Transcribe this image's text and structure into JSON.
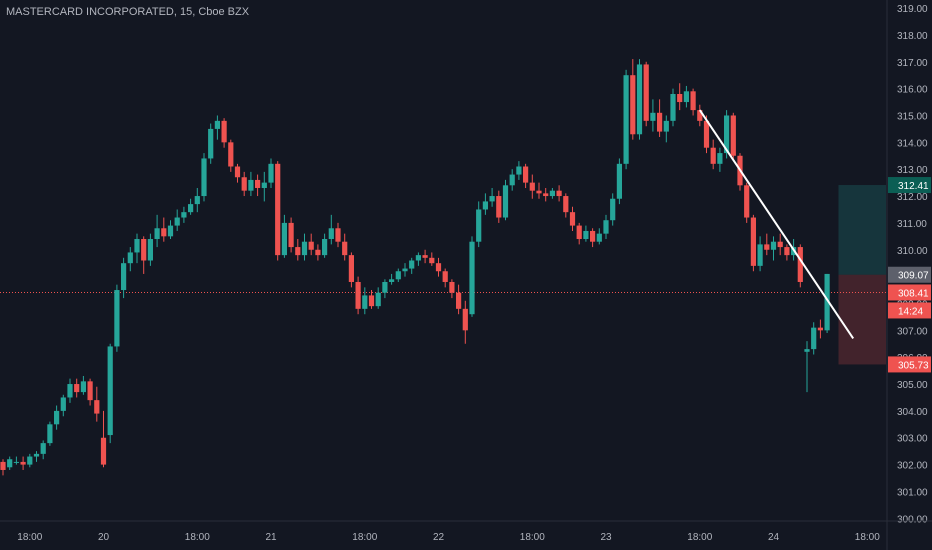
{
  "header": {
    "title": "MASTERCARD INCORPORATED, 15, Cboe BZX"
  },
  "colors": {
    "background": "#131722",
    "up": "#26a69a",
    "down": "#ef5350",
    "axis_text": "#b2b5be",
    "axis_border": "#2a2e39",
    "trendline": "#ffffff",
    "profit_zone": "#26a69a",
    "loss_zone": "#ef5350",
    "price_line": "#ef5350",
    "entry_tag": "#5d606b"
  },
  "chart_data": {
    "type": "candlestick",
    "title": "MASTERCARD INCORPORATED, 15, Cboe BZX",
    "xlabel": "",
    "ylabel": "",
    "ylim": [
      299.9,
      319.3
    ],
    "y_ticks": [
      300,
      301,
      302,
      303,
      304,
      305,
      306,
      307,
      308,
      309,
      310,
      311,
      312,
      313,
      314,
      315,
      316,
      317,
      318,
      319
    ],
    "x_ticks": [
      {
        "label": "18:00",
        "index": 4
      },
      {
        "label": "20",
        "index": 15
      },
      {
        "label": "18:00",
        "index": 29
      },
      {
        "label": "21",
        "index": 40
      },
      {
        "label": "18:00",
        "index": 54
      },
      {
        "label": "22",
        "index": 65
      },
      {
        "label": "18:00",
        "index": 79
      },
      {
        "label": "23",
        "index": 90
      },
      {
        "label": "18:00",
        "index": 104
      },
      {
        "label": "24",
        "index": 115
      },
      {
        "label": "18:00",
        "index": 129
      }
    ],
    "candles": [
      [
        302.1,
        302.2,
        301.6,
        301.8
      ],
      [
        301.9,
        302.3,
        301.8,
        302.2
      ],
      [
        302.1,
        302.3,
        302.0,
        302.1
      ],
      [
        302.1,
        302.3,
        301.8,
        302.0
      ],
      [
        302.0,
        302.4,
        301.9,
        302.3
      ],
      [
        302.3,
        302.5,
        302.1,
        302.4
      ],
      [
        302.4,
        302.9,
        302.2,
        302.8
      ],
      [
        302.8,
        303.6,
        302.7,
        303.5
      ],
      [
        303.5,
        304.2,
        303.3,
        304.0
      ],
      [
        304.0,
        304.6,
        303.8,
        304.5
      ],
      [
        304.5,
        305.2,
        304.3,
        305.0
      ],
      [
        305.0,
        305.2,
        304.5,
        304.7
      ],
      [
        304.7,
        305.3,
        304.6,
        305.1
      ],
      [
        305.1,
        305.2,
        304.2,
        304.4
      ],
      [
        304.4,
        304.9,
        303.6,
        303.9
      ],
      [
        303.0,
        304.0,
        301.9,
        302.0
      ],
      [
        303.1,
        306.5,
        302.8,
        306.4
      ],
      [
        306.4,
        308.7,
        306.2,
        308.5
      ],
      [
        308.5,
        309.7,
        308.2,
        309.5
      ],
      [
        309.5,
        310.1,
        309.2,
        309.9
      ],
      [
        309.9,
        310.6,
        309.5,
        310.4
      ],
      [
        310.4,
        310.5,
        309.1,
        309.6
      ],
      [
        309.6,
        310.6,
        309.4,
        310.4
      ],
      [
        310.4,
        311.3,
        310.1,
        310.8
      ],
      [
        310.8,
        311.2,
        310.3,
        310.5
      ],
      [
        310.5,
        311.1,
        310.4,
        310.9
      ],
      [
        310.9,
        311.5,
        310.7,
        311.2
      ],
      [
        311.2,
        311.6,
        311.0,
        311.4
      ],
      [
        311.4,
        311.9,
        311.3,
        311.7
      ],
      [
        311.7,
        312.3,
        311.4,
        312.0
      ],
      [
        312.0,
        313.6,
        311.8,
        313.4
      ],
      [
        313.4,
        314.7,
        313.2,
        314.5
      ],
      [
        314.5,
        315.0,
        314.1,
        314.8
      ],
      [
        314.8,
        314.9,
        313.8,
        314.0
      ],
      [
        314.0,
        314.1,
        312.9,
        313.1
      ],
      [
        313.1,
        313.2,
        312.5,
        312.7
      ],
      [
        312.7,
        312.9,
        312.0,
        312.2
      ],
      [
        312.2,
        312.9,
        312.0,
        312.6
      ],
      [
        312.6,
        312.8,
        312.0,
        312.3
      ],
      [
        312.3,
        312.9,
        311.8,
        312.5
      ],
      [
        312.5,
        313.4,
        312.3,
        313.2
      ],
      [
        313.2,
        313.3,
        309.6,
        309.8
      ],
      [
        309.8,
        311.3,
        309.7,
        311.0
      ],
      [
        311.0,
        311.2,
        309.9,
        310.1
      ],
      [
        310.1,
        310.4,
        309.6,
        309.8
      ],
      [
        309.8,
        310.6,
        309.6,
        310.3
      ],
      [
        310.3,
        310.6,
        309.8,
        310.0
      ],
      [
        310.0,
        310.2,
        309.6,
        309.8
      ],
      [
        309.8,
        310.6,
        309.7,
        310.4
      ],
      [
        310.4,
        311.3,
        310.2,
        310.8
      ],
      [
        310.8,
        311.0,
        310.1,
        310.3
      ],
      [
        310.3,
        310.6,
        309.6,
        309.8
      ],
      [
        309.8,
        309.9,
        308.6,
        308.8
      ],
      [
        308.8,
        309.0,
        307.6,
        307.8
      ],
      [
        307.8,
        308.6,
        307.6,
        308.3
      ],
      [
        308.3,
        308.5,
        307.8,
        307.9
      ],
      [
        307.9,
        308.6,
        307.8,
        308.4
      ],
      [
        308.4,
        308.9,
        308.2,
        308.8
      ],
      [
        308.8,
        309.1,
        308.7,
        308.9
      ],
      [
        308.9,
        309.3,
        308.8,
        309.2
      ],
      [
        309.2,
        309.5,
        309.0,
        309.3
      ],
      [
        309.3,
        309.7,
        309.1,
        309.6
      ],
      [
        309.6,
        309.9,
        309.4,
        309.8
      ],
      [
        309.8,
        310.0,
        309.5,
        309.7
      ],
      [
        309.7,
        309.9,
        309.4,
        309.5
      ],
      [
        309.5,
        309.7,
        309.0,
        309.2
      ],
      [
        309.2,
        309.3,
        308.6,
        308.8
      ],
      [
        308.8,
        308.9,
        308.2,
        308.4
      ],
      [
        308.4,
        308.7,
        307.6,
        307.8
      ],
      [
        307.8,
        308.1,
        306.5,
        307.0
      ],
      [
        307.6,
        310.5,
        307.5,
        310.3
      ],
      [
        310.3,
        311.8,
        310.1,
        311.5
      ],
      [
        311.5,
        312.1,
        311.3,
        311.8
      ],
      [
        311.8,
        312.3,
        311.6,
        312.0
      ],
      [
        312.0,
        312.2,
        311.0,
        311.2
      ],
      [
        311.2,
        312.6,
        311.1,
        312.4
      ],
      [
        312.4,
        313.0,
        312.2,
        312.8
      ],
      [
        312.8,
        313.3,
        312.6,
        313.1
      ],
      [
        313.1,
        313.2,
        312.3,
        312.5
      ],
      [
        312.5,
        312.8,
        311.9,
        312.2
      ],
      [
        312.2,
        312.5,
        311.9,
        312.1
      ],
      [
        312.1,
        312.3,
        311.8,
        312.0
      ],
      [
        312.0,
        312.3,
        311.9,
        312.2
      ],
      [
        312.2,
        312.4,
        311.8,
        312.0
      ],
      [
        312.0,
        312.1,
        311.2,
        311.4
      ],
      [
        311.4,
        311.6,
        310.7,
        310.9
      ],
      [
        310.9,
        311.0,
        310.2,
        310.4
      ],
      [
        310.4,
        310.9,
        310.3,
        310.7
      ],
      [
        310.7,
        310.8,
        310.1,
        310.3
      ],
      [
        310.3,
        310.8,
        310.2,
        310.6
      ],
      [
        310.6,
        311.3,
        310.4,
        311.1
      ],
      [
        311.1,
        312.1,
        310.9,
        311.9
      ],
      [
        311.9,
        313.4,
        311.7,
        313.2
      ],
      [
        313.2,
        316.7,
        313.0,
        316.5
      ],
      [
        316.5,
        317.1,
        314.1,
        314.3
      ],
      [
        314.3,
        317.1,
        314.1,
        316.9
      ],
      [
        316.9,
        317.0,
        314.6,
        314.8
      ],
      [
        314.8,
        315.6,
        314.4,
        315.1
      ],
      [
        315.1,
        315.6,
        314.2,
        314.4
      ],
      [
        314.4,
        315.0,
        314.0,
        314.8
      ],
      [
        314.8,
        316.0,
        314.6,
        315.8
      ],
      [
        315.8,
        316.2,
        315.2,
        315.5
      ],
      [
        315.5,
        316.1,
        315.3,
        315.9
      ],
      [
        315.9,
        316.0,
        315.0,
        315.2
      ],
      [
        315.2,
        315.4,
        314.6,
        314.8
      ],
      [
        314.8,
        315.0,
        313.6,
        313.8
      ],
      [
        313.8,
        314.1,
        313.0,
        313.2
      ],
      [
        313.2,
        313.8,
        312.9,
        313.6
      ],
      [
        313.6,
        315.2,
        313.4,
        315.0
      ],
      [
        315.0,
        315.1,
        313.3,
        313.5
      ],
      [
        313.5,
        313.6,
        312.2,
        312.4
      ],
      [
        312.4,
        312.5,
        311.0,
        311.2
      ],
      [
        311.2,
        311.3,
        309.2,
        309.4
      ],
      [
        309.4,
        310.5,
        309.2,
        310.2
      ],
      [
        310.2,
        310.6,
        309.8,
        310.0
      ],
      [
        310.0,
        310.5,
        309.6,
        310.3
      ],
      [
        310.3,
        310.6,
        309.8,
        310.1
      ],
      [
        310.1,
        310.2,
        309.6,
        309.8
      ],
      [
        309.8,
        310.4,
        309.6,
        310.1
      ],
      [
        310.1,
        310.2,
        308.6,
        308.8
      ],
      [
        306.2,
        306.6,
        304.7,
        306.3
      ],
      [
        306.3,
        307.3,
        306.1,
        307.1
      ],
      [
        307.1,
        307.4,
        306.7,
        307.0
      ],
      [
        307.0,
        309.1,
        306.9,
        309.1
      ]
    ],
    "trendline": {
      "from": {
        "index": 104,
        "price": 315.2
      },
      "to": {
        "index": 126,
        "price": 306.7
      }
    },
    "position": {
      "entry": 309.07,
      "target": 312.41,
      "stop": 305.73,
      "start_index": 125,
      "end_index": 138
    },
    "current_price": 308.41,
    "countdown": "14:24",
    "price_labels": [
      "312.41",
      "309.07",
      "308.41",
      "14:24",
      "305.73"
    ]
  }
}
